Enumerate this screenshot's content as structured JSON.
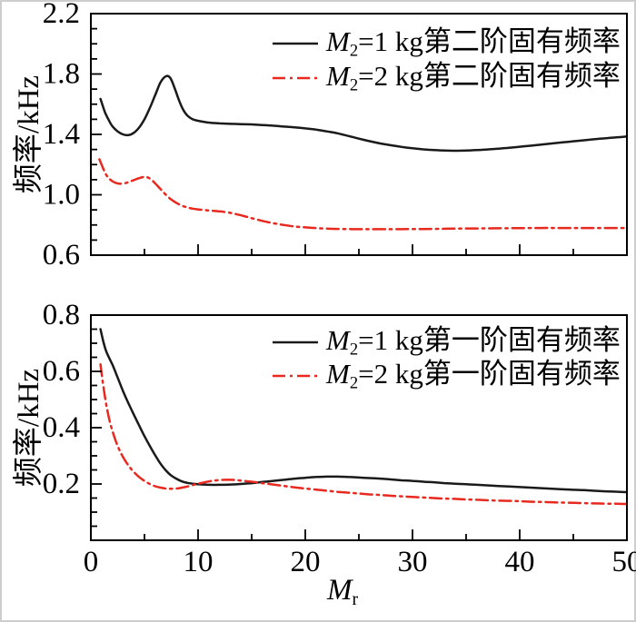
{
  "figure": {
    "background": "#ffffff",
    "frame_color": "#cdcdcd",
    "axis_color": "#000000",
    "series_colors": {
      "black": "#1a1a1a",
      "red": "#e8291f"
    }
  },
  "axis_titles": {
    "y_top": "频率/kHz",
    "y_bottom": "频率/kHz",
    "x": {
      "var": "M",
      "sub": "r"
    }
  },
  "chart_data": [
    {
      "type": "line",
      "title": "",
      "xlabel": "",
      "ylabel": "频率/kHz",
      "xlim": [
        0,
        50
      ],
      "ylim": [
        0.6,
        2.2
      ],
      "grid": false,
      "legend_position": "top-right-inside",
      "x_major_ticks": [
        0,
        10,
        20,
        30,
        40,
        50
      ],
      "x_tick_labels": [],
      "x_minor_step": 5,
      "y_major_ticks": [
        0.6,
        1.0,
        1.4,
        1.8,
        2.2
      ],
      "y_tick_labels": [
        "0.6",
        "1.0",
        "1.4",
        "1.8",
        "2.2"
      ],
      "y_minor_step": 0.1,
      "series": [
        {
          "name": "M2=1 kg第二阶固有频率",
          "legend": {
            "var": "M",
            "sub": "2",
            "rest": "=1 kg第二阶固有频率"
          },
          "color": "black",
          "style": "solid",
          "points": [
            [
              0.9,
              1.635
            ],
            [
              1.3,
              1.55
            ],
            [
              1.7,
              1.49
            ],
            [
              2,
              1.455
            ],
            [
              2.5,
              1.42
            ],
            [
              3,
              1.4
            ],
            [
              3.5,
              1.395
            ],
            [
              4,
              1.41
            ],
            [
              4.5,
              1.445
            ],
            [
              5,
              1.5
            ],
            [
              5.5,
              1.575
            ],
            [
              6,
              1.66
            ],
            [
              6.5,
              1.745
            ],
            [
              7,
              1.785
            ],
            [
              7.4,
              1.775
            ],
            [
              7.8,
              1.71
            ],
            [
              8.2,
              1.63
            ],
            [
              8.6,
              1.565
            ],
            [
              9,
              1.525
            ],
            [
              9.5,
              1.5
            ],
            [
              10,
              1.49
            ],
            [
              11,
              1.478
            ],
            [
              12,
              1.473
            ],
            [
              13,
              1.47
            ],
            [
              14,
              1.468
            ],
            [
              15,
              1.466
            ],
            [
              16,
              1.462
            ],
            [
              17,
              1.458
            ],
            [
              18,
              1.452
            ],
            [
              19,
              1.447
            ],
            [
              20,
              1.44
            ],
            [
              21,
              1.432
            ],
            [
              22,
              1.42
            ],
            [
              23,
              1.407
            ],
            [
              24,
              1.39
            ],
            [
              25,
              1.372
            ],
            [
              26,
              1.355
            ],
            [
              27,
              1.34
            ],
            [
              28,
              1.328
            ],
            [
              29,
              1.317
            ],
            [
              30,
              1.308
            ],
            [
              31,
              1.301
            ],
            [
              32,
              1.296
            ],
            [
              33,
              1.293
            ],
            [
              34,
              1.292
            ],
            [
              35,
              1.293
            ],
            [
              36,
              1.296
            ],
            [
              37,
              1.3
            ],
            [
              38,
              1.305
            ],
            [
              39,
              1.311
            ],
            [
              40,
              1.318
            ],
            [
              41,
              1.325
            ],
            [
              42,
              1.332
            ],
            [
              43,
              1.34
            ],
            [
              44,
              1.347
            ],
            [
              45,
              1.354
            ],
            [
              46,
              1.361
            ],
            [
              47,
              1.368
            ],
            [
              48,
              1.374
            ],
            [
              49,
              1.38
            ],
            [
              50,
              1.386
            ]
          ]
        },
        {
          "name": "M2=2 kg第二阶固有频率",
          "legend": {
            "var": "M",
            "sub": "2",
            "rest": "=2 kg第二阶固有频率"
          },
          "color": "red",
          "style": "dash-dot",
          "points": [
            [
              0.8,
              1.235
            ],
            [
              1,
              1.2
            ],
            [
              1.3,
              1.15
            ],
            [
              1.6,
              1.115
            ],
            [
              2,
              1.09
            ],
            [
              2.4,
              1.077
            ],
            [
              2.8,
              1.073
            ],
            [
              3.2,
              1.077
            ],
            [
              3.6,
              1.086
            ],
            [
              4,
              1.097
            ],
            [
              4.5,
              1.11
            ],
            [
              5,
              1.118
            ],
            [
              5.4,
              1.112
            ],
            [
              5.8,
              1.09
            ],
            [
              6.2,
              1.06
            ],
            [
              6.6,
              1.03
            ],
            [
              7,
              1.0
            ],
            [
              7.5,
              0.968
            ],
            [
              8,
              0.945
            ],
            [
              8.5,
              0.928
            ],
            [
              9,
              0.916
            ],
            [
              9.5,
              0.908
            ],
            [
              10,
              0.903
            ],
            [
              11,
              0.896
            ],
            [
              12,
              0.89
            ],
            [
              13,
              0.88
            ],
            [
              14,
              0.864
            ],
            [
              15,
              0.845
            ],
            [
              16,
              0.827
            ],
            [
              17,
              0.812
            ],
            [
              18,
              0.8
            ],
            [
              19,
              0.79
            ],
            [
              20,
              0.784
            ],
            [
              21,
              0.779
            ],
            [
              22,
              0.776
            ],
            [
              23,
              0.774
            ],
            [
              24,
              0.773
            ],
            [
              25,
              0.772
            ],
            [
              26,
              0.772
            ],
            [
              28,
              0.772
            ],
            [
              30,
              0.773
            ],
            [
              32,
              0.774
            ],
            [
              34,
              0.776
            ],
            [
              36,
              0.777
            ],
            [
              38,
              0.778
            ],
            [
              40,
              0.779
            ],
            [
              42,
              0.78
            ],
            [
              44,
              0.78
            ],
            [
              46,
              0.78
            ],
            [
              48,
              0.78
            ],
            [
              50,
              0.78
            ]
          ]
        }
      ]
    },
    {
      "type": "line",
      "title": "",
      "xlabel": "Mr",
      "ylabel": "频率/kHz",
      "xlim": [
        0,
        50
      ],
      "ylim": [
        0,
        0.8
      ],
      "grid": false,
      "legend_position": "top-right-inside",
      "x_major_ticks": [
        0,
        10,
        20,
        30,
        40,
        50
      ],
      "x_tick_labels": [
        "0",
        "10",
        "20",
        "30",
        "40",
        "50"
      ],
      "x_minor_step": 5,
      "y_major_ticks": [
        0,
        0.2,
        0.4,
        0.6,
        0.8
      ],
      "y_tick_labels": [
        "",
        "0.2",
        "0.4",
        "0.6",
        "0.8"
      ],
      "y_minor_step": 0.05,
      "series": [
        {
          "name": "M2=1 kg第一阶固有频率",
          "legend": {
            "var": "M",
            "sub": "2",
            "rest": "=1 kg第一阶固有频率"
          },
          "color": "black",
          "style": "solid",
          "points": [
            [
              0.9,
              0.75
            ],
            [
              1.2,
              0.7
            ],
            [
              1.5,
              0.665
            ],
            [
              2,
              0.625
            ],
            [
              2.5,
              0.578
            ],
            [
              3,
              0.53
            ],
            [
              3.5,
              0.487
            ],
            [
              4,
              0.447
            ],
            [
              4.5,
              0.408
            ],
            [
              5,
              0.37
            ],
            [
              5.5,
              0.335
            ],
            [
              6,
              0.302
            ],
            [
              6.5,
              0.272
            ],
            [
              7,
              0.248
            ],
            [
              7.5,
              0.23
            ],
            [
              8,
              0.218
            ],
            [
              8.5,
              0.209
            ],
            [
              9,
              0.204
            ],
            [
              9.5,
              0.201
            ],
            [
              10,
              0.199
            ],
            [
              11,
              0.197
            ],
            [
              12,
              0.197
            ],
            [
              13,
              0.198
            ],
            [
              14,
              0.2
            ],
            [
              15,
              0.203
            ],
            [
              16,
              0.207
            ],
            [
              17,
              0.211
            ],
            [
              18,
              0.215
            ],
            [
              19,
              0.219
            ],
            [
              20,
              0.222
            ],
            [
              21,
              0.225
            ],
            [
              22,
              0.226
            ],
            [
              23,
              0.226
            ],
            [
              24,
              0.225
            ],
            [
              25,
              0.223
            ],
            [
              26,
              0.221
            ],
            [
              27,
              0.219
            ],
            [
              28,
              0.216
            ],
            [
              29,
              0.213
            ],
            [
              30,
              0.211
            ],
            [
              31,
              0.208
            ],
            [
              32,
              0.206
            ],
            [
              33,
              0.203
            ],
            [
              34,
              0.201
            ],
            [
              35,
              0.199
            ],
            [
              36,
              0.197
            ],
            [
              38,
              0.193
            ],
            [
              40,
              0.189
            ],
            [
              42,
              0.185
            ],
            [
              44,
              0.181
            ],
            [
              46,
              0.178
            ],
            [
              48,
              0.174
            ],
            [
              50,
              0.171
            ]
          ]
        },
        {
          "name": "M2=2 kg第一阶固有频率",
          "legend": {
            "var": "M",
            "sub": "2",
            "rest": "=2 kg第一阶固有频率"
          },
          "color": "red",
          "style": "dash-dot",
          "points": [
            [
              0.9,
              0.625
            ],
            [
              1.1,
              0.565
            ],
            [
              1.4,
              0.49
            ],
            [
              1.7,
              0.432
            ],
            [
              2,
              0.39
            ],
            [
              2.4,
              0.345
            ],
            [
              2.8,
              0.31
            ],
            [
              3.2,
              0.283
            ],
            [
              3.6,
              0.261
            ],
            [
              4,
              0.243
            ],
            [
              4.5,
              0.225
            ],
            [
              5,
              0.211
            ],
            [
              5.5,
              0.2
            ],
            [
              6,
              0.192
            ],
            [
              6.5,
              0.187
            ],
            [
              7,
              0.184
            ],
            [
              7.5,
              0.183
            ],
            [
              8,
              0.184
            ],
            [
              8.5,
              0.187
            ],
            [
              9,
              0.191
            ],
            [
              9.5,
              0.196
            ],
            [
              10,
              0.201
            ],
            [
              10.5,
              0.205
            ],
            [
              11,
              0.209
            ],
            [
              11.5,
              0.212
            ],
            [
              12,
              0.214
            ],
            [
              12.5,
              0.215
            ],
            [
              13,
              0.215
            ],
            [
              13.5,
              0.214
            ],
            [
              14,
              0.212
            ],
            [
              15,
              0.208
            ],
            [
              16,
              0.203
            ],
            [
              17,
              0.198
            ],
            [
              18,
              0.193
            ],
            [
              19,
              0.188
            ],
            [
              20,
              0.184
            ],
            [
              21,
              0.18
            ],
            [
              22,
              0.176
            ],
            [
              23,
              0.172
            ],
            [
              24,
              0.169
            ],
            [
              25,
              0.166
            ],
            [
              26,
              0.163
            ],
            [
              27,
              0.161
            ],
            [
              28,
              0.158
            ],
            [
              29,
              0.156
            ],
            [
              30,
              0.154
            ],
            [
              31,
              0.152
            ],
            [
              32,
              0.15
            ],
            [
              33,
              0.148
            ],
            [
              34,
              0.147
            ],
            [
              35,
              0.145
            ],
            [
              36,
              0.144
            ],
            [
              37,
              0.142
            ],
            [
              38,
              0.141
            ],
            [
              39,
              0.14
            ],
            [
              40,
              0.139
            ],
            [
              41,
              0.137
            ],
            [
              42,
              0.136
            ],
            [
              43,
              0.135
            ],
            [
              44,
              0.134
            ],
            [
              45,
              0.133
            ],
            [
              46,
              0.132
            ],
            [
              47,
              0.131
            ],
            [
              48,
              0.13
            ],
            [
              49,
              0.13
            ],
            [
              50,
              0.129
            ]
          ]
        }
      ]
    }
  ]
}
